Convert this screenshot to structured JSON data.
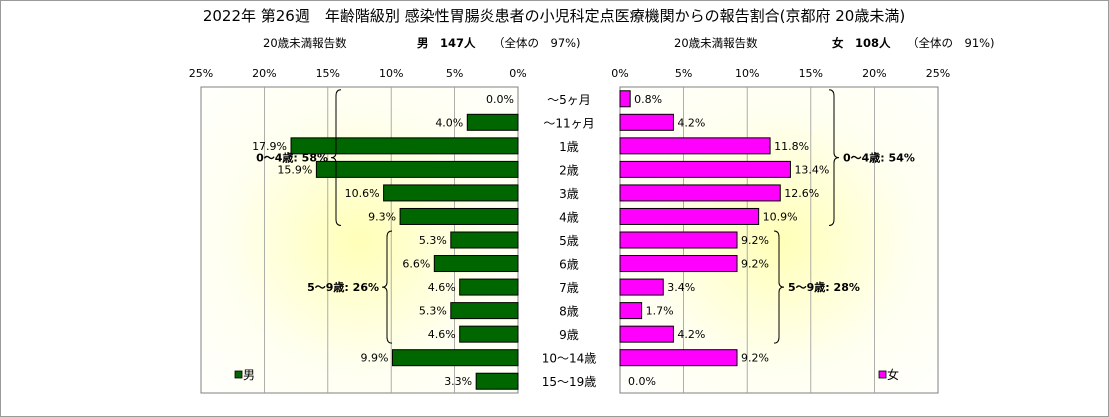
{
  "chart_data": {
    "type": "bar",
    "title": "2022年 第26週　年齢階級別 感染性胃腸炎患者の小児科定点医療機関からの報告割合(京都府 20歳未満)",
    "categories": [
      "～5ヶ月",
      "～11ヶ月",
      "1歳",
      "2歳",
      "3歳",
      "4歳",
      "5歳",
      "6歳",
      "7歳",
      "8歳",
      "9歳",
      "10～14歳",
      "15～19歳"
    ],
    "x_ticks": [
      "0%",
      "5%",
      "10%",
      "15%",
      "20%",
      "25%"
    ],
    "xlim": [
      0,
      25
    ],
    "grid": true,
    "series": [
      {
        "name": "男",
        "color": "#006600",
        "subtitle_label": "20歳未満報告数",
        "subtitle_total": "男　147人",
        "subtitle_share": "（全体の　97%)",
        "values": [
          0.0,
          4.0,
          17.9,
          15.9,
          10.6,
          9.3,
          5.3,
          6.6,
          4.6,
          5.3,
          4.6,
          9.9,
          3.3
        ],
        "value_labels": [
          "0.0%",
          "4.0%",
          "17.9%",
          "15.9%",
          "10.6%",
          "9.3%",
          "5.3%",
          "6.6%",
          "4.6%",
          "5.3%",
          "4.6%",
          "9.9%",
          "3.3%"
        ],
        "group_labels": [
          {
            "text": "0～4歳: 58%",
            "from": 0,
            "to": 5
          },
          {
            "text": "5～9歳: 26%",
            "from": 6,
            "to": 10
          }
        ]
      },
      {
        "name": "女",
        "color": "#ff00ff",
        "subtitle_label": "20歳未満報告数",
        "subtitle_total": "女　108人",
        "subtitle_share": "（全体の　91%)",
        "values": [
          0.8,
          4.2,
          11.8,
          13.4,
          12.6,
          10.9,
          9.2,
          9.2,
          3.4,
          1.7,
          4.2,
          9.2,
          0.0
        ],
        "value_labels": [
          "0.8%",
          "4.2%",
          "11.8%",
          "13.4%",
          "12.6%",
          "10.9%",
          "9.2%",
          "9.2%",
          "3.4%",
          "1.7%",
          "4.2%",
          "9.2%",
          "0.0%"
        ],
        "group_labels": [
          {
            "text": "0～4歳: 54%",
            "from": 0,
            "to": 5
          },
          {
            "text": "5～9歳: 28%",
            "from": 6,
            "to": 10
          }
        ]
      }
    ]
  }
}
